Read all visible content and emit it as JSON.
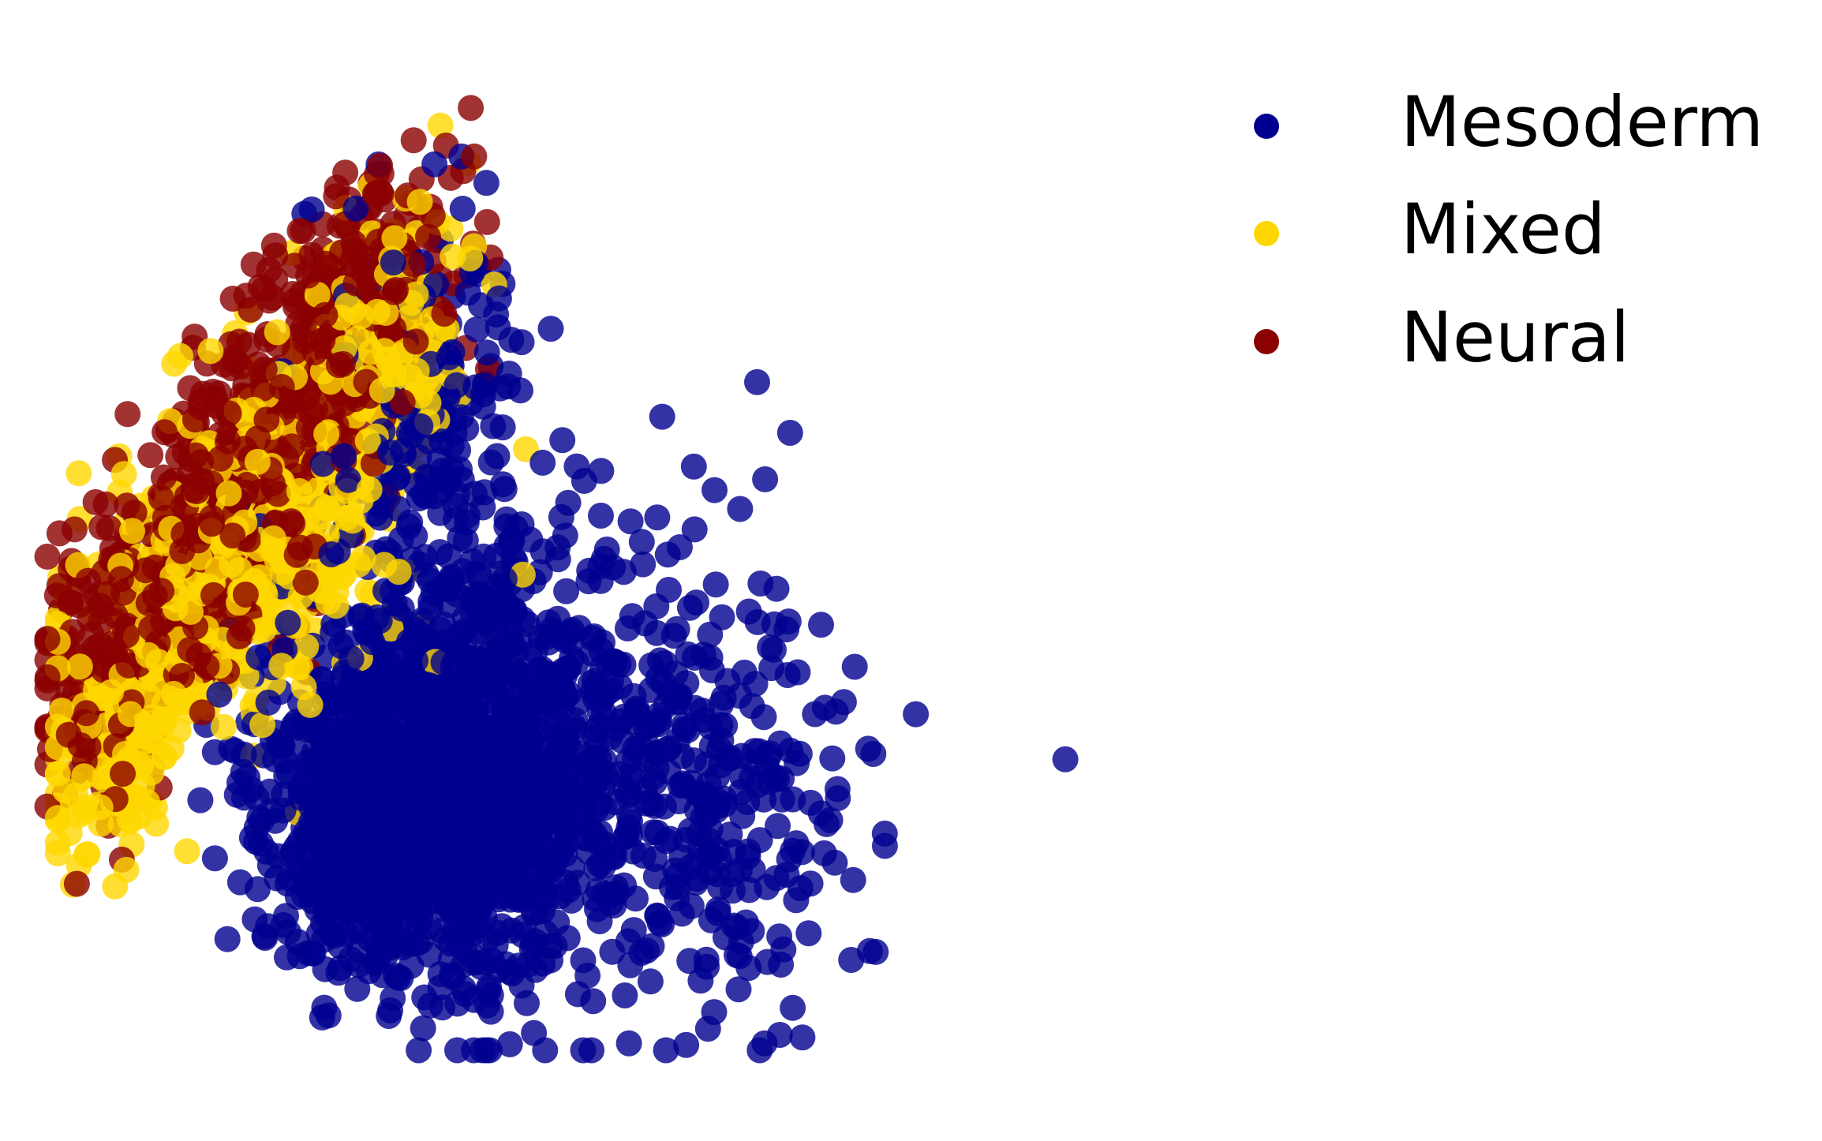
{
  "chart_data": {
    "type": "scatter",
    "title": "",
    "xlabel": "",
    "ylabel": "",
    "axes_visible": false,
    "grid": false,
    "legend": {
      "placement": "top-right",
      "entries": [
        {
          "name": "Mesoderm",
          "color": "#000090"
        },
        {
          "name": "Mixed",
          "color": "#FFD700"
        },
        {
          "name": "Neural",
          "color": "#8B0000"
        }
      ]
    },
    "xlim": [
      0,
      100
    ],
    "ylim": [
      0,
      100
    ],
    "point_alpha": 0.8,
    "series": [
      {
        "name": "Mesoderm",
        "color": "#000090"
      },
      {
        "name": "Mixed",
        "color": "#FFD700"
      },
      {
        "name": "Neural",
        "color": "#8B0000"
      }
    ]
  }
}
